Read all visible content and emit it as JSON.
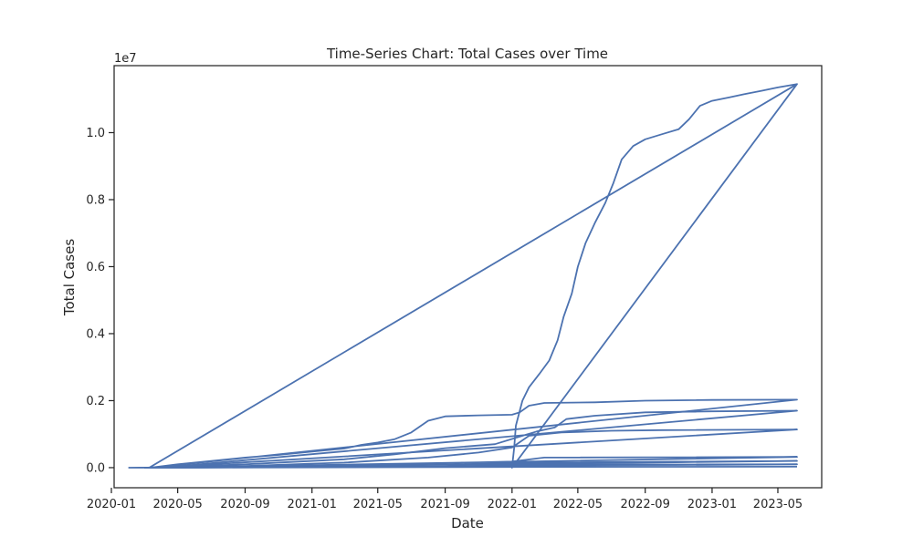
{
  "chart_data": {
    "type": "line",
    "title": "Time-Series Chart: Total Cases over Time",
    "xlabel": "Date",
    "ylabel": "Total Cases",
    "y_offset_text": "1e7",
    "xlim": [
      "2020-01-06",
      "2023-07-20"
    ],
    "ylim": [
      -600000,
      12000000
    ],
    "x_ticks": [
      "2020-01",
      "2020-05",
      "2020-09",
      "2021-01",
      "2021-05",
      "2021-09",
      "2022-01",
      "2022-05",
      "2022-09",
      "2023-01",
      "2023-05"
    ],
    "y_ticks": [
      0.0,
      0.2,
      0.4,
      0.6,
      0.8,
      1.0
    ],
    "y_tick_scale": 10000000,
    "grid": false,
    "line_color": "#4c72b0",
    "series": [
      {
        "points": [
          [
            "2020-03-10",
            0
          ],
          [
            "2023-06-05",
            11450000
          ],
          [
            "2022-01-01",
            0
          ],
          [
            "2022-01-03",
            300000
          ],
          [
            "2022-01-05",
            600000
          ],
          [
            "2022-01-08",
            1250000
          ],
          [
            "2022-01-20",
            2000000
          ],
          [
            "2022-02-01",
            2400000
          ],
          [
            "2022-02-20",
            2800000
          ],
          [
            "2022-03-10",
            3200000
          ],
          [
            "2022-03-25",
            3800000
          ],
          [
            "2022-04-05",
            4500000
          ],
          [
            "2022-04-20",
            5200000
          ],
          [
            "2022-05-01",
            6000000
          ],
          [
            "2022-05-15",
            6700000
          ],
          [
            "2022-06-01",
            7300000
          ],
          [
            "2022-06-20",
            7900000
          ],
          [
            "2022-07-05",
            8500000
          ],
          [
            "2022-07-20",
            9200000
          ],
          [
            "2022-08-10",
            9600000
          ],
          [
            "2022-09-01",
            9800000
          ],
          [
            "2022-10-01",
            9950000
          ],
          [
            "2022-11-01",
            10100000
          ],
          [
            "2022-11-20",
            10400000
          ],
          [
            "2022-12-10",
            10800000
          ],
          [
            "2023-01-01",
            10950000
          ],
          [
            "2023-02-01",
            11050000
          ],
          [
            "2023-03-01",
            11150000
          ],
          [
            "2023-04-01",
            11250000
          ],
          [
            "2023-05-01",
            11350000
          ],
          [
            "2023-06-05",
            11450000
          ]
        ]
      },
      {
        "points": [
          [
            "2020-02-01",
            0
          ],
          [
            "2020-03-15",
            5000
          ],
          [
            "2020-05-01",
            100000
          ],
          [
            "2020-07-01",
            200000
          ],
          [
            "2020-09-01",
            300000
          ],
          [
            "2020-11-01",
            380000
          ],
          [
            "2021-01-01",
            480000
          ],
          [
            "2021-03-01",
            570000
          ],
          [
            "2021-04-01",
            680000
          ],
          [
            "2021-05-01",
            750000
          ],
          [
            "2021-06-01",
            850000
          ],
          [
            "2021-07-01",
            1050000
          ],
          [
            "2021-08-01",
            1400000
          ],
          [
            "2021-09-01",
            1530000
          ],
          [
            "2021-11-01",
            1560000
          ],
          [
            "2022-01-01",
            1580000
          ],
          [
            "2022-01-15",
            1650000
          ],
          [
            "2022-02-01",
            1850000
          ],
          [
            "2022-03-01",
            1930000
          ],
          [
            "2022-06-01",
            1950000
          ],
          [
            "2022-09-01",
            2000000
          ],
          [
            "2023-01-01",
            2020000
          ],
          [
            "2023-06-05",
            2030000
          ],
          [
            "2020-03-15",
            0
          ],
          [
            "2023-06-05",
            2030000
          ]
        ]
      },
      {
        "points": [
          [
            "2020-03-01",
            0
          ],
          [
            "2020-09-01",
            100000
          ],
          [
            "2021-03-01",
            250000
          ],
          [
            "2021-06-01",
            400000
          ],
          [
            "2021-09-01",
            580000
          ],
          [
            "2021-12-01",
            700000
          ],
          [
            "2022-01-20",
            950000
          ],
          [
            "2022-02-15",
            1080000
          ],
          [
            "2022-03-20",
            1200000
          ],
          [
            "2022-04-10",
            1450000
          ],
          [
            "2022-06-01",
            1550000
          ],
          [
            "2022-09-01",
            1650000
          ],
          [
            "2023-01-01",
            1680000
          ],
          [
            "2023-06-05",
            1700000
          ],
          [
            "2020-04-01",
            0
          ],
          [
            "2023-06-05",
            1700000
          ]
        ]
      },
      {
        "points": [
          [
            "2020-03-01",
            0
          ],
          [
            "2020-09-01",
            50000
          ],
          [
            "2021-03-01",
            150000
          ],
          [
            "2021-08-01",
            300000
          ],
          [
            "2021-11-01",
            450000
          ],
          [
            "2022-01-01",
            600000
          ],
          [
            "2022-02-01",
            950000
          ],
          [
            "2022-04-01",
            1050000
          ],
          [
            "2022-07-01",
            1100000
          ],
          [
            "2022-10-01",
            1120000
          ],
          [
            "2023-06-05",
            1140000
          ],
          [
            "2020-03-20",
            0
          ],
          [
            "2023-06-05",
            1140000
          ]
        ]
      },
      {
        "points": [
          [
            "2020-03-01",
            0
          ],
          [
            "2021-03-01",
            60000
          ],
          [
            "2022-01-01",
            180000
          ],
          [
            "2022-03-01",
            300000
          ],
          [
            "2022-09-01",
            310000
          ],
          [
            "2023-06-05",
            320000
          ],
          [
            "2020-04-01",
            0
          ],
          [
            "2023-06-05",
            320000
          ]
        ]
      },
      {
        "points": [
          [
            "2020-03-01",
            0
          ],
          [
            "2021-06-01",
            50000
          ],
          [
            "2022-02-01",
            150000
          ],
          [
            "2023-06-05",
            200000
          ],
          [
            "2020-05-01",
            0
          ],
          [
            "2023-06-05",
            200000
          ]
        ]
      },
      {
        "points": [
          [
            "2020-03-01",
            0
          ],
          [
            "2021-09-01",
            40000
          ],
          [
            "2022-03-01",
            90000
          ],
          [
            "2023-06-05",
            100000
          ],
          [
            "2020-06-01",
            0
          ],
          [
            "2023-06-05",
            100000
          ]
        ]
      },
      {
        "points": [
          [
            "2020-03-01",
            0
          ],
          [
            "2022-01-01",
            20000
          ],
          [
            "2023-06-05",
            30000
          ]
        ]
      }
    ]
  }
}
